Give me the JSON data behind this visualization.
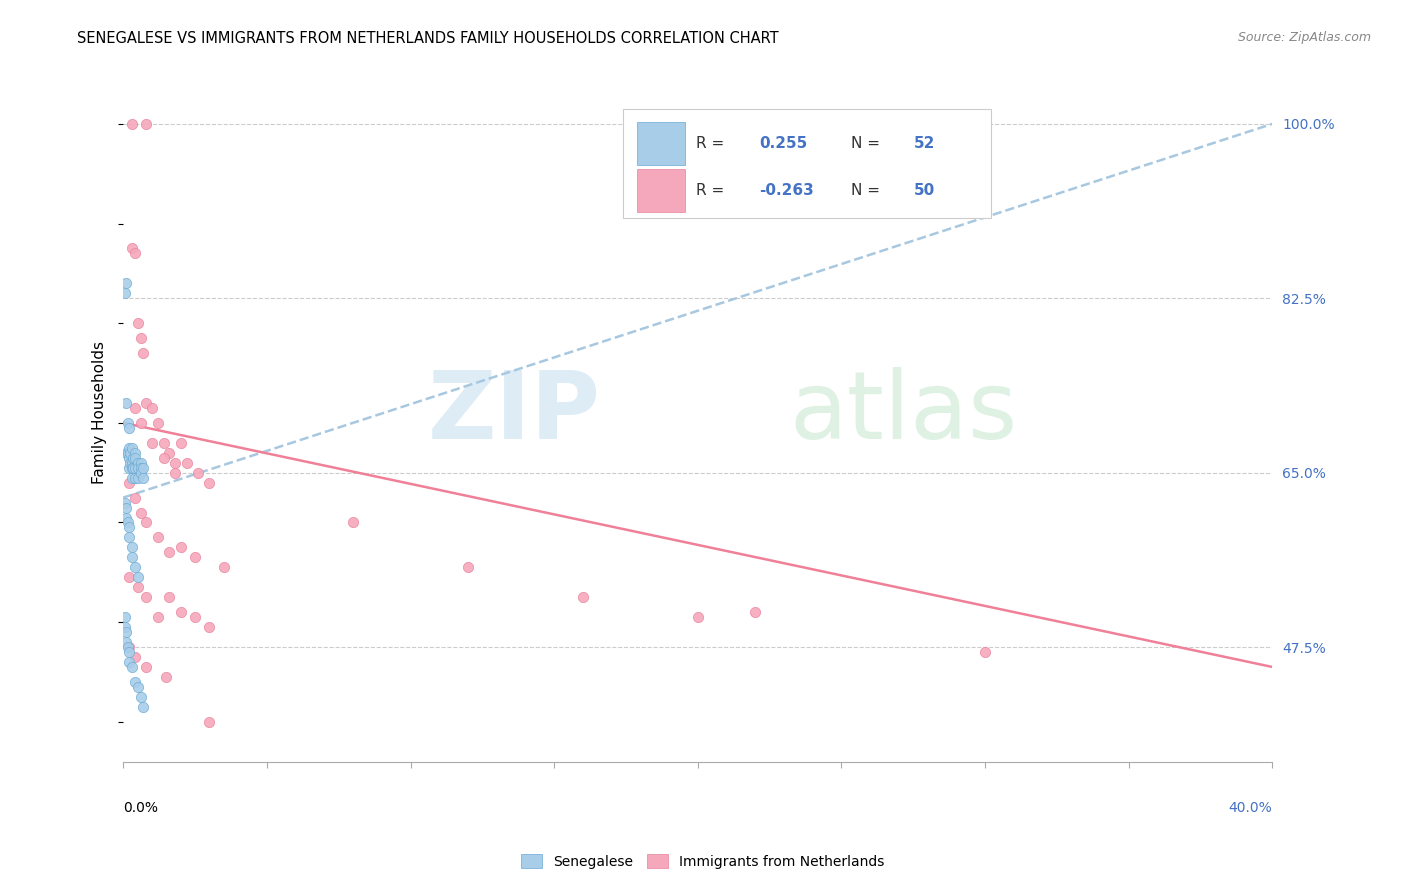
{
  "title": "SENEGALESE VS IMMIGRANTS FROM NETHERLANDS FAMILY HOUSEHOLDS CORRELATION CHART",
  "source": "Source: ZipAtlas.com",
  "ylabel": "Family Households",
  "ylabel_right_ticks": [
    "100.0%",
    "82.5%",
    "65.0%",
    "47.5%"
  ],
  "ylabel_right_values": [
    1.0,
    0.825,
    0.65,
    0.475
  ],
  "legend_blue_R": "0.255",
  "legend_blue_N": "52",
  "legend_pink_R": "-0.263",
  "legend_pink_N": "50",
  "blue_scatter_color": "#A8CDE8",
  "blue_scatter_edge": "#6AAAD4",
  "pink_scatter_color": "#F5A8BC",
  "pink_scatter_edge": "#E8809A",
  "blue_trend_color": "#A8C8E0",
  "pink_trend_color": "#F08098",
  "grid_color": "#CCCCCC",
  "right_label_color": "#4472C4",
  "xlim": [
    0.0,
    0.4
  ],
  "ylim": [
    0.36,
    1.06
  ],
  "blue_trend_x0": 0.0,
  "blue_trend_y0": 0.625,
  "blue_trend_x1": 0.4,
  "blue_trend_y1": 1.0,
  "pink_trend_x0": 0.0,
  "pink_trend_y0": 0.7,
  "pink_trend_x1": 0.4,
  "pink_trend_y1": 0.455,
  "sen_x": [
    0.0005,
    0.001,
    0.001,
    0.001,
    0.0015,
    0.0015,
    0.002,
    0.002,
    0.002,
    0.002,
    0.0025,
    0.0025,
    0.003,
    0.003,
    0.003,
    0.003,
    0.0035,
    0.0035,
    0.004,
    0.004,
    0.004,
    0.004,
    0.005,
    0.005,
    0.005,
    0.006,
    0.006,
    0.006,
    0.007,
    0.007,
    0.0005,
    0.001,
    0.001,
    0.0015,
    0.002,
    0.002,
    0.003,
    0.003,
    0.004,
    0.005,
    0.0005,
    0.0005,
    0.001,
    0.001,
    0.0015,
    0.002,
    0.002,
    0.003,
    0.004,
    0.005,
    0.006,
    0.007
  ],
  "sen_y": [
    0.83,
    0.84,
    0.72,
    0.67,
    0.7,
    0.67,
    0.695,
    0.675,
    0.665,
    0.655,
    0.67,
    0.66,
    0.675,
    0.66,
    0.655,
    0.645,
    0.665,
    0.655,
    0.67,
    0.665,
    0.655,
    0.645,
    0.66,
    0.655,
    0.645,
    0.66,
    0.655,
    0.65,
    0.655,
    0.645,
    0.62,
    0.615,
    0.605,
    0.6,
    0.595,
    0.585,
    0.575,
    0.565,
    0.555,
    0.545,
    0.505,
    0.495,
    0.49,
    0.48,
    0.475,
    0.47,
    0.46,
    0.455,
    0.44,
    0.435,
    0.425,
    0.415
  ],
  "neth_x": [
    0.003,
    0.008,
    0.003,
    0.004,
    0.005,
    0.006,
    0.007,
    0.008,
    0.01,
    0.012,
    0.014,
    0.016,
    0.018,
    0.02,
    0.004,
    0.006,
    0.01,
    0.014,
    0.018,
    0.022,
    0.026,
    0.03,
    0.002,
    0.004,
    0.006,
    0.008,
    0.012,
    0.016,
    0.02,
    0.025,
    0.002,
    0.005,
    0.008,
    0.012,
    0.016,
    0.02,
    0.025,
    0.03,
    0.035,
    0.08,
    0.12,
    0.16,
    0.2,
    0.22,
    0.3,
    0.002,
    0.004,
    0.008,
    0.015,
    0.03
  ],
  "neth_y": [
    1.0,
    1.0,
    0.875,
    0.87,
    0.8,
    0.785,
    0.77,
    0.72,
    0.715,
    0.7,
    0.68,
    0.67,
    0.66,
    0.68,
    0.715,
    0.7,
    0.68,
    0.665,
    0.65,
    0.66,
    0.65,
    0.64,
    0.64,
    0.625,
    0.61,
    0.6,
    0.585,
    0.57,
    0.575,
    0.565,
    0.545,
    0.535,
    0.525,
    0.505,
    0.525,
    0.51,
    0.505,
    0.495,
    0.555,
    0.6,
    0.555,
    0.525,
    0.505,
    0.51,
    0.47,
    0.475,
    0.465,
    0.455,
    0.445,
    0.4
  ]
}
